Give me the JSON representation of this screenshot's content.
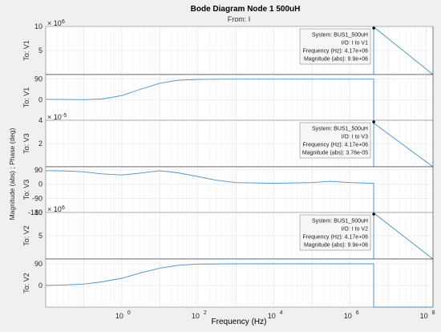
{
  "chart_data": {
    "type": "line",
    "title": "Bode Diagram Node 1 500uH",
    "subtitle": "From: I",
    "xlabel": "Frequency  (Hz)",
    "ylabel": "Magnitude (abs) ; Phase (deg)",
    "x_scale": "log",
    "xlim": [
      0.01,
      150000000
    ],
    "x_ticks": [
      "10",
      "0",
      "10",
      "2",
      "10",
      "4",
      "10",
      "6",
      "10",
      "8"
    ],
    "grid": true,
    "line_color": "#4a90c8",
    "marker_frequency": 4170000,
    "panels": [
      {
        "ylabel": "To: V1",
        "kind": "magnitude",
        "ylim": [
          0,
          10000000
        ],
        "ticks": [
          "10",
          "5"
        ],
        "exponent_label": "× 10",
        "exponent_value": "6",
        "datatip": {
          "system": "System: BUS1_500uH",
          "io": "I/O: I to V1",
          "frequency": "Frequency (Hz): 4.17e+06",
          "value": "Magnitude (abs): 9.9e+06"
        },
        "x": [
          0.01,
          1,
          100,
          10000,
          1000000,
          4170000,
          4170000,
          150000000
        ],
        "y": [
          0,
          0,
          0,
          0,
          0,
          0,
          9900000,
          0
        ]
      },
      {
        "ylabel": "To: V1",
        "kind": "phase",
        "ylim": [
          -90,
          110
        ],
        "ticks": [
          "90",
          "0"
        ],
        "x": [
          0.01,
          0.03,
          0.1,
          0.3,
          1,
          3,
          10,
          30,
          100,
          1000,
          10000,
          100000,
          1000000,
          4170000,
          4170000,
          150000000
        ],
        "y": [
          2,
          1,
          0,
          3,
          18,
          45,
          72,
          85,
          89,
          90,
          90,
          90,
          90,
          90,
          -90,
          -90
        ]
      },
      {
        "ylabel": "To: V3",
        "kind": "magnitude",
        "ylim": [
          0,
          4e-05
        ],
        "ticks": [
          "4",
          "2"
        ],
        "exponent_label": "× 10",
        "exponent_value": "-5",
        "datatip": {
          "system": "System: BUS1_500uH",
          "io": "I/O: I to V3",
          "frequency": "Frequency (Hz): 4.17e+06",
          "value": "Magnitude (abs): 3.76e-05"
        },
        "x": [
          0.01,
          1,
          100,
          10000,
          1000000,
          4170000,
          4170000,
          150000000
        ],
        "y": [
          0,
          0,
          0,
          0,
          0,
          0,
          3.76e-05,
          0
        ]
      },
      {
        "ylabel": "To: V3",
        "kind": "phase",
        "ylim": [
          -180,
          110
        ],
        "ticks": [
          "90",
          "0",
          "-90",
          "-180"
        ],
        "x": [
          0.01,
          0.03,
          0.1,
          0.3,
          1,
          3,
          10,
          30,
          100,
          300,
          1000,
          10000,
          100000,
          300000,
          1000000,
          4170000,
          4170000,
          150000000
        ],
        "y": [
          85,
          84,
          78,
          65,
          58,
          70,
          85,
          72,
          48,
          25,
          10,
          5,
          10,
          18,
          10,
          5,
          -180,
          -180
        ]
      },
      {
        "ylabel": "To: V2",
        "kind": "magnitude",
        "ylim": [
          0,
          10000000
        ],
        "ticks": [
          "10",
          "5"
        ],
        "exponent_label": "× 10",
        "exponent_value": "6",
        "datatip": {
          "system": "System: BUS1_500uH",
          "io": "I/O: I to V2",
          "frequency": "Frequency (Hz): 4.17e+06",
          "value": "Magnitude (abs): 9.9e+06"
        },
        "x": [
          0.01,
          1,
          100,
          10000,
          1000000,
          4170000,
          4170000,
          150000000
        ],
        "y": [
          0,
          0,
          0,
          0,
          0,
          0,
          9900000,
          0
        ]
      },
      {
        "ylabel": "To: V2",
        "kind": "phase",
        "ylim": [
          -90,
          110
        ],
        "ticks": [
          "90",
          "0"
        ],
        "x": [
          0.01,
          0.03,
          0.1,
          0.3,
          1,
          3,
          10,
          30,
          100,
          1000,
          10000,
          100000,
          1000000,
          4170000,
          4170000,
          150000000
        ],
        "y": [
          0,
          2,
          6,
          15,
          30,
          52,
          72,
          84,
          89,
          90,
          90,
          90,
          90,
          90,
          -90,
          -90
        ]
      }
    ]
  }
}
